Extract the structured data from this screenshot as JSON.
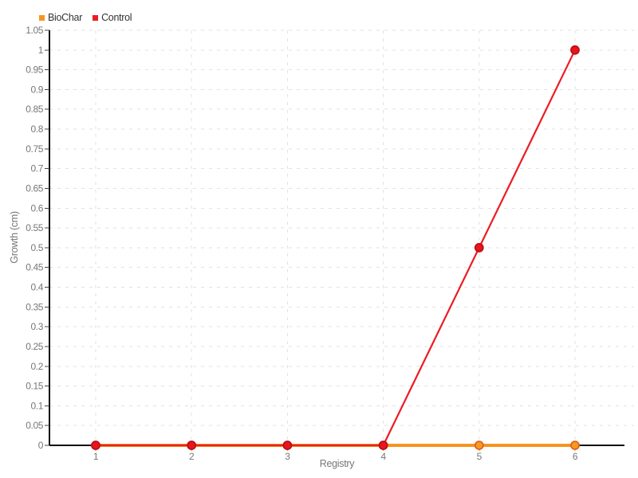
{
  "chart_data": {
    "type": "line",
    "title": "",
    "xlabel": "Registry",
    "ylabel": "Growth (cm)",
    "x": [
      1,
      2,
      3,
      4,
      5,
      6
    ],
    "x_tick_labels": [
      "1",
      "2",
      "3",
      "4",
      "5",
      "6"
    ],
    "series": [
      {
        "name": "BioChar",
        "color": "#F7941E",
        "point_fill": "#F39C1F",
        "point_stroke": "#E0621B",
        "line_width": 4,
        "values": [
          0,
          0,
          0,
          0,
          0,
          0
        ]
      },
      {
        "name": "Control",
        "color": "#EC1C24",
        "point_fill": "#E8161C",
        "point_stroke": "#BC1015",
        "line_width": 2.2,
        "values": [
          0,
          0,
          0,
          0,
          0.5,
          1
        ]
      }
    ],
    "ylim": [
      0,
      1.05
    ],
    "y_tick_step": 0.05,
    "y_tick_labels": [
      "0",
      "0.05",
      "0.1",
      "0.15",
      "0.2",
      "0.25",
      "0.3",
      "0.35",
      "0.4",
      "0.45",
      "0.5",
      "0.55",
      "0.6",
      "0.65",
      "0.7",
      "0.75",
      "0.8",
      "0.85",
      "0.9",
      "0.95",
      "1",
      "1.05"
    ],
    "grid": true,
    "legend_position": "top-left",
    "colors": {
      "background": "#FFFFFF",
      "grid": "#E2E2E2",
      "axis": "#0A0A0A",
      "y_tick_mark": "#444444",
      "x_tick_mark": "#999999",
      "tick_label": "#777777",
      "axis_title": "#777777",
      "legend_text": "#333333"
    }
  }
}
